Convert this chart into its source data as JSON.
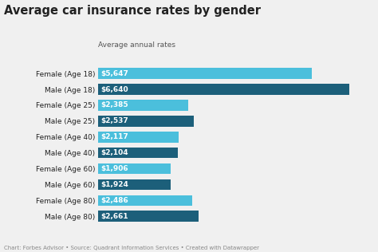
{
  "title": "Average car insurance rates by gender",
  "subtitle": "Average annual rates",
  "categories": [
    "Female (Age 18)",
    "Male (Age 18)",
    "Female (Age 25)",
    "Male (Age 25)",
    "Female (Age 40)",
    "Male (Age 40)",
    "Female (Age 60)",
    "Male (Age 60)",
    "Female (Age 80)",
    "Male (Age 80)"
  ],
  "values": [
    5647,
    6640,
    2385,
    2537,
    2117,
    2104,
    1906,
    1924,
    2486,
    2661
  ],
  "labels": [
    "$5,647",
    "$6,640",
    "$2,385",
    "$2,537",
    "$2,117",
    "$2,104",
    "$1,906",
    "$1,924",
    "$2,486",
    "$2,661"
  ],
  "female_color": "#4bbfdc",
  "male_color": "#1c5f7a",
  "background_color": "#f0f0f0",
  "text_color": "#222222",
  "label_color": "#ffffff",
  "subtitle_color": "#555555",
  "footer_color": "#888888",
  "footer": "Chart: Forbes Advisor • Source: Quadrant Information Services • Created with Datawrapper",
  "title_fontsize": 10.5,
  "subtitle_fontsize": 6.5,
  "bar_label_fontsize": 6.5,
  "ytick_fontsize": 6.5,
  "footer_fontsize": 5.0,
  "xlim": [
    0,
    7200
  ],
  "bar_height": 0.68
}
